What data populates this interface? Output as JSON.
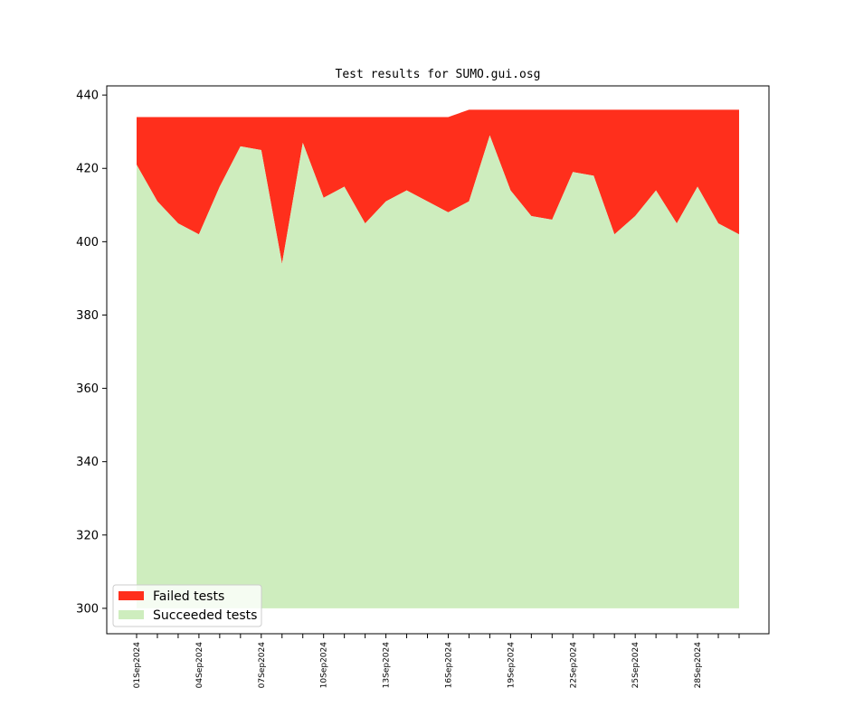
{
  "chart_data": {
    "type": "area",
    "title": "Test results for SUMO.gui.osg",
    "xlabel": "",
    "ylabel": "",
    "ylim": [
      300,
      440
    ],
    "y_ticks": [
      300,
      320,
      340,
      360,
      380,
      400,
      420,
      440
    ],
    "x": [
      "01Sep2024",
      "02Sep2024",
      "03Sep2024",
      "04Sep2024",
      "05Sep2024",
      "06Sep2024",
      "07Sep2024",
      "08Sep2024",
      "09Sep2024",
      "10Sep2024",
      "11Sep2024",
      "12Sep2024",
      "13Sep2024",
      "14Sep2024",
      "15Sep2024",
      "16Sep2024",
      "17Sep2024",
      "18Sep2024",
      "19Sep2024",
      "20Sep2024",
      "21Sep2024",
      "22Sep2024",
      "23Sep2024",
      "24Sep2024",
      "25Sep2024",
      "26Sep2024",
      "27Sep2024",
      "28Sep2024",
      "29Sep2024",
      "30Sep2024"
    ],
    "x_tick_labels": [
      "01Sep2024",
      "04Sep2024",
      "07Sep2024",
      "10Sep2024",
      "13Sep2024",
      "16Sep2024",
      "19Sep2024",
      "22Sep2024",
      "25Sep2024",
      "28Sep2024"
    ],
    "series": [
      {
        "name": "Failed tests",
        "color": "#ff2f1c",
        "values": [
          13,
          23,
          29,
          32,
          19,
          8,
          9,
          40,
          7,
          22,
          19,
          29,
          23,
          20,
          23,
          26,
          25,
          7,
          22,
          29,
          30,
          17,
          18,
          34,
          29,
          22,
          31,
          21,
          31,
          34
        ]
      },
      {
        "name": "Succeeded tests",
        "color": "#ceedbe",
        "values": [
          421,
          411,
          405,
          402,
          415,
          426,
          425,
          394,
          427,
          412,
          415,
          405,
          411,
          414,
          411,
          408,
          411,
          429,
          414,
          407,
          406,
          419,
          418,
          402,
          407,
          414,
          405,
          415,
          405,
          402
        ]
      }
    ],
    "total_tests": [
      434,
      434,
      434,
      434,
      434,
      434,
      434,
      434,
      434,
      434,
      434,
      434,
      434,
      434,
      434,
      434,
      436,
      436,
      436,
      436,
      436,
      436,
      436,
      436,
      436,
      436,
      436,
      436,
      436,
      436
    ],
    "legend_position": "lower left",
    "grid": false
  }
}
